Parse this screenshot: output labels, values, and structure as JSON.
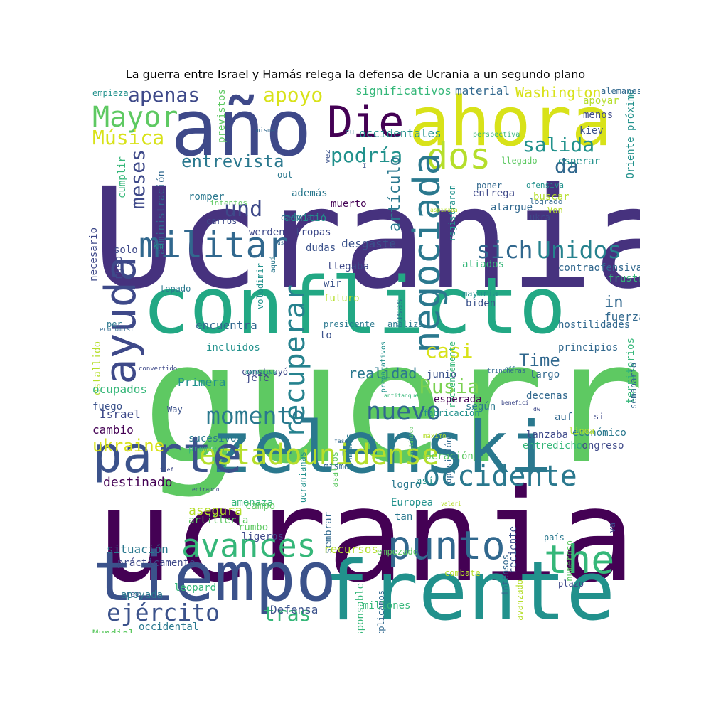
{
  "title": "La guerra entre Israel y Hamás relega la defensa de Ucrania a un segundo plano",
  "palette": {
    "dark_purple": "#440154",
    "indigo": "#3b528b",
    "teal": "#21918c",
    "green": "#5ec962",
    "yellow": "#fde725"
  },
  "words": [
    {
      "t": "Ucrania",
      "c": "#46327e"
    },
    {
      "t": "guerra",
      "c": "#5ec962"
    },
    {
      "t": "ucraniano",
      "c": "#440154"
    },
    {
      "t": "conflicto",
      "c": "#22a884"
    },
    {
      "t": "zelenski",
      "c": "#2a788e"
    },
    {
      "t": "frente",
      "c": "#21918c"
    },
    {
      "t": "año",
      "c": "#3e4989"
    },
    {
      "t": "ahora",
      "c": "#d8e219"
    },
    {
      "t": "tiempo",
      "c": "#3b528b"
    },
    {
      "t": "parte",
      "c": "#3b528b"
    },
    {
      "t": "Die",
      "c": "#440154"
    },
    {
      "t": "dos",
      "c": "#b5de2b"
    },
    {
      "t": "militar",
      "c": "#31688e"
    },
    {
      "t": "avances",
      "c": "#35b779"
    },
    {
      "t": "punto",
      "c": "#31688e"
    },
    {
      "t": "the",
      "c": "#35b779"
    },
    {
      "t": "ayuda",
      "c": "#3e4989"
    },
    {
      "t": "occidente",
      "c": "#2a788e"
    },
    {
      "t": "estadounidense",
      "c": "#b5de2b"
    },
    {
      "t": "nuevo",
      "c": "#31688e"
    },
    {
      "t": "Unidos",
      "c": "#26828e"
    },
    {
      "t": "sich",
      "c": "#31688e"
    },
    {
      "t": "Mayor",
      "c": "#5ec962"
    },
    {
      "t": "ejército",
      "c": "#3b528b"
    },
    {
      "t": "negociada",
      "c": "#2a788e"
    },
    {
      "t": "recuperar",
      "c": "#26828e"
    },
    {
      "t": "momento",
      "c": "#2a788e"
    },
    {
      "t": "Rusia",
      "c": "#7ad151"
    },
    {
      "t": "apoyo",
      "c": "#d8e219"
    },
    {
      "t": "apenas",
      "c": "#3e4989"
    },
    {
      "t": "und",
      "c": "#3e4989"
    },
    {
      "t": "podría",
      "c": "#21918c"
    },
    {
      "t": "salida",
      "c": "#21918c"
    },
    {
      "t": "entrevista",
      "c": "#2a788e"
    },
    {
      "t": "Música",
      "c": "#d8e219"
    },
    {
      "t": "meses",
      "c": "#3e4989"
    },
    {
      "t": "da",
      "c": "#31688e"
    },
    {
      "t": "ukraine",
      "c": "#d8e219"
    },
    {
      "t": "tras",
      "c": "#35b779"
    },
    {
      "t": "casi",
      "c": "#d8e219"
    },
    {
      "t": "artículo",
      "c": "#2a788e"
    },
    {
      "t": "Time",
      "c": "#31688e"
    },
    {
      "t": "in",
      "c": "#31688e"
    },
    {
      "t": "realidad",
      "c": "#2a788e"
    },
    {
      "t": "Washington",
      "c": "#d8e219"
    },
    {
      "t": "significativos",
      "c": "#35b779"
    },
    {
      "t": "material",
      "c": "#31688e"
    },
    {
      "t": "occidentales",
      "c": "#21918c"
    },
    {
      "t": "destinado",
      "c": "#440154"
    },
    {
      "t": "asegura",
      "c": "#b5de2b"
    },
    {
      "t": "situación",
      "c": "#2a788e"
    },
    {
      "t": "Defensa",
      "c": "#3b528b"
    },
    {
      "t": "occidental",
      "c": "#2a788e"
    },
    {
      "t": "recursos",
      "c": "#b5de2b"
    },
    {
      "t": "Primera",
      "c": "#21918c"
    },
    {
      "t": "ocupados",
      "c": "#35b779"
    },
    {
      "t": "Israel",
      "c": "#3e4989"
    },
    {
      "t": "cambio",
      "c": "#440154"
    },
    {
      "t": "contraofensiva",
      "c": "#31688e"
    },
    {
      "t": "principios",
      "c": "#31688e"
    },
    {
      "t": "hostilidades",
      "c": "#31688e"
    },
    {
      "t": "fuerza",
      "c": "#31688e"
    },
    {
      "t": "económico",
      "c": "#2a788e"
    },
    {
      "t": "congreso",
      "c": "#3e4989"
    },
    {
      "t": "Oriente próximo",
      "c": "#21918c"
    },
    {
      "t": "territorios",
      "c": "#35b779"
    },
    {
      "t": "aliados",
      "c": "#35b779"
    },
    {
      "t": "biden",
      "c": "#3b528b"
    },
    {
      "t": "decenas",
      "c": "#31688e"
    },
    {
      "t": "largo",
      "c": "#31688e"
    },
    {
      "t": "junio",
      "c": "#3b528b"
    },
    {
      "t": "jefe",
      "c": "#3e4989"
    },
    {
      "t": "encuentra",
      "c": "#31688e"
    },
    {
      "t": "desgaste",
      "c": "#3b528b"
    },
    {
      "t": "tropas",
      "c": "#3e4989"
    },
    {
      "t": "admitió",
      "c": "#21918c"
    },
    {
      "t": "además",
      "c": "#2a788e"
    },
    {
      "t": "muerto",
      "c": "#440154"
    },
    {
      "t": "dudas",
      "c": "#3b528b"
    },
    {
      "t": "werden",
      "c": "#3e4989"
    },
    {
      "t": "romper",
      "c": "#2a788e"
    },
    {
      "t": "solo",
      "c": "#3e4989"
    },
    {
      "t": "ruso",
      "c": "#3e4989"
    },
    {
      "t": "necesario",
      "c": "#3e4989"
    },
    {
      "t": "administración",
      "c": "#31688e"
    },
    {
      "t": "cumplir",
      "c": "#35b779"
    },
    {
      "t": "previstos",
      "c": "#5ec962"
    },
    {
      "t": "empieza",
      "c": "#21918c"
    },
    {
      "t": "alemanes",
      "c": "#31688e"
    },
    {
      "t": "apoyar",
      "c": "#b5de2b"
    },
    {
      "t": "menos",
      "c": "#3e4989"
    },
    {
      "t": "kiev",
      "c": "#3b528b"
    },
    {
      "t": "esperar",
      "c": "#21918c"
    },
    {
      "t": "llegado",
      "c": "#5ec962"
    },
    {
      "t": "poner",
      "c": "#31688e"
    },
    {
      "t": "buscar",
      "c": "#b5de2b"
    },
    {
      "t": "ukra",
      "c": "#3e4989"
    },
    {
      "t": "alargue",
      "c": "#31688e"
    },
    {
      "t": "Von",
      "c": "#b5de2b"
    },
    {
      "t": "entrega",
      "c": "#3e4989"
    },
    {
      "t": "logrado",
      "c": "#31688e"
    },
    {
      "t": "ofensiva",
      "c": "#21918c"
    },
    {
      "t": "out",
      "c": "#2a788e"
    },
    {
      "t": "carros",
      "c": "#3e4989"
    },
    {
      "t": "desviar",
      "c": "#31688e"
    },
    {
      "t": "intentos",
      "c": "#5ec962"
    },
    {
      "t": "km",
      "c": "#21918c"
    },
    {
      "t": "topado",
      "c": "#2a788e"
    },
    {
      "t": "llegaba",
      "c": "#3e4989"
    },
    {
      "t": "wir",
      "c": "#3b528b"
    },
    {
      "t": "futuro",
      "c": "#b5de2b"
    },
    {
      "t": "mayoría",
      "c": "#21918c"
    },
    {
      "t": "frustrado",
      "c": "#35b779"
    },
    {
      "t": "per",
      "c": "#2a788e"
    },
    {
      "t": "estallido",
      "c": "#b5de2b"
    },
    {
      "t": "volodimir",
      "c": "#21918c"
    },
    {
      "t": "presidente",
      "c": "#2a788e"
    },
    {
      "t": "analiza",
      "c": "#2a788e"
    },
    {
      "t": "incluidos",
      "c": "#21918c"
    },
    {
      "t": "to",
      "c": "#3b528b"
    },
    {
      "t": "rusas",
      "c": "#2a788e"
    },
    {
      "t": "recientemente",
      "c": "#35b779"
    },
    {
      "t": "construyó",
      "c": "#3e4989"
    },
    {
      "t": "fabricación",
      "c": "#21918c"
    },
    {
      "t": "esperada",
      "c": "#440154"
    },
    {
      "t": "según",
      "c": "#2a788e"
    },
    {
      "t": "auf",
      "c": "#31688e"
    },
    {
      "t": "si",
      "c": "#3e4989"
    },
    {
      "t": "línea",
      "c": "#b5de2b"
    },
    {
      "t": "entredicho",
      "c": "#35b779"
    },
    {
      "t": "lanzaba",
      "c": "#3e4989"
    },
    {
      "t": "Way",
      "c": "#3b528b"
    },
    {
      "t": "fuego",
      "c": "#3b528b"
    },
    {
      "t": "sucesivos",
      "c": "#2a788e"
    },
    {
      "t": "promesa",
      "c": "#35b779"
    },
    {
      "t": "asaltos",
      "c": "#5ec962"
    },
    {
      "t": "ucranianas",
      "c": "#21918c"
    },
    {
      "t": "minas",
      "c": "#2a788e"
    },
    {
      "t": "oposición",
      "c": "#31688e"
    },
    {
      "t": "operación",
      "c": "#5ec962"
    },
    {
      "t": "así",
      "c": "#21918c"
    },
    {
      "t": "mismo",
      "c": "#31688e"
    },
    {
      "t": "amenaza",
      "c": "#35b779"
    },
    {
      "t": "artillería",
      "c": "#5ec962"
    },
    {
      "t": "campo",
      "c": "#5ec962"
    },
    {
      "t": "rumbo",
      "c": "#5ec962"
    },
    {
      "t": "ligeros",
      "c": "#3e4989"
    },
    {
      "t": "sembrar",
      "c": "#31688e"
    },
    {
      "t": "Europea",
      "c": "#21918c"
    },
    {
      "t": "tan",
      "c": "#2a788e"
    },
    {
      "t": "logró",
      "c": "#2a788e"
    },
    {
      "t": "reciente",
      "c": "#3b528b"
    },
    {
      "t": "empezado",
      "c": "#5ec962"
    },
    {
      "t": "país",
      "c": "#2a788e"
    },
    {
      "t": "va",
      "c": "#3e4989"
    },
    {
      "t": "numeroso",
      "c": "#5ec962"
    },
    {
      "t": "combate",
      "c": "#b5de2b"
    },
    {
      "t": "explicamos",
      "c": "#31688e"
    },
    {
      "t": "responsable",
      "c": "#35b779"
    },
    {
      "t": "intensos",
      "c": "#31688e"
    },
    {
      "t": "avanzado",
      "c": "#b5de2b"
    },
    {
      "t": "plazo",
      "c": "#3e4989"
    },
    {
      "t": "millones",
      "c": "#35b779"
    },
    {
      "t": "leopard",
      "c": "#35b779"
    },
    {
      "t": "Mundial",
      "c": "#5ec962"
    },
    {
      "t": "prácticamente",
      "c": "#3e4989"
    },
    {
      "t": "cree",
      "c": "#3b528b"
    },
    {
      "t": "apoyada",
      "c": "#2a788e"
    },
    {
      "t": "aquí",
      "c": "#2a788e"
    },
    {
      "t": "vez",
      "c": "#3b528b"
    },
    {
      "t": "cu",
      "c": "#2a788e"
    },
    {
      "t": "misma",
      "c": "#31688e"
    },
    {
      "t": "I",
      "c": "#3b528b"
    },
    {
      "t": "registraron",
      "c": "#21918c"
    },
    {
      "t": "preparativos",
      "c": "#21918c"
    },
    {
      "t": "aspiraba",
      "c": "#b5de2b"
    },
    {
      "t": "zus",
      "c": "#31688e"
    },
    {
      "t": "nueva",
      "c": "#2a788e"
    },
    {
      "t": "panorama",
      "c": "#5ec962"
    },
    {
      "t": "perspectiva",
      "c": "#35b779"
    },
    {
      "t": "semanario",
      "c": "#31688e"
    },
    {
      "t": "economist",
      "c": "#31688e"
    },
    {
      "t": "convertido",
      "c": "#3e4989"
    },
    {
      "t": "defensiva",
      "c": "#21918c"
    },
    {
      "t": "antitanque",
      "c": "#35b779"
    },
    {
      "t": "trincheras",
      "c": "#31688e"
    },
    {
      "t": "gff",
      "c": "#2a788e"
    },
    {
      "t": "benefici",
      "c": "#3e4989"
    },
    {
      "t": "dw",
      "c": "#3e4989"
    },
    {
      "t": "máximo",
      "c": "#b5de2b"
    },
    {
      "t": "fase",
      "c": "#31688e"
    },
    {
      "t": "tief",
      "c": "#3e4989"
    },
    {
      "t": "británico",
      "c": "#5ec962"
    },
    {
      "t": "entrando",
      "c": "#3e4989"
    },
    {
      "t": "valeri",
      "c": "#b5de2b"
    },
    {
      "t": "mh",
      "c": "#3e4989"
    },
    {
      "t": "zni",
      "c": "#31688e"
    },
    {
      "t": "comparó",
      "c": "#2a788e"
    },
    {
      "t": "hace",
      "c": "#2a788e"
    },
    {
      "t": "estancado",
      "c": "#21918c"
    }
  ]
}
